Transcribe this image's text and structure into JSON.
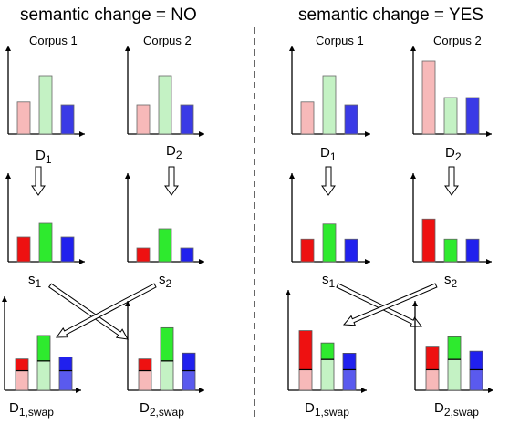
{
  "left": {
    "title": "semantic change = NO",
    "corpus1": "Corpus 1",
    "corpus2": "Corpus 2",
    "d1": {
      "main": "D",
      "sub": "1"
    },
    "d2": {
      "main": "D",
      "sub": "2"
    },
    "s1": {
      "main": "s",
      "sub": "1"
    },
    "s2": {
      "main": "s",
      "sub": "2"
    },
    "d1swap": {
      "main": "D",
      "sub": "1,swap"
    },
    "d2swap": {
      "main": "D",
      "sub": "2,swap"
    },
    "dist1": [
      0.55,
      1.0,
      0.5
    ],
    "dist2": [
      0.5,
      1.0,
      0.5
    ],
    "sample1": [
      0.45,
      0.7,
      0.45
    ],
    "sample2": [
      0.25,
      0.6,
      0.25
    ],
    "swap1": [
      [
        0.5,
        0.3
      ],
      [
        0.75,
        0.65
      ],
      [
        0.5,
        0.35
      ]
    ],
    "swap2": [
      [
        0.5,
        0.3
      ],
      [
        0.75,
        0.85
      ],
      [
        0.5,
        0.45
      ]
    ]
  },
  "right": {
    "title": "semantic change = YES",
    "corpus1": "Corpus 1",
    "corpus2": "Corpus 2",
    "d1": {
      "main": "D",
      "sub": "1"
    },
    "d2": {
      "main": "D",
      "sub": "2"
    },
    "s1": {
      "main": "s",
      "sub": "1"
    },
    "s2": {
      "main": "s",
      "sub": "2"
    },
    "d1swap": {
      "main": "D",
      "sub": "1,swap"
    },
    "d2swap": {
      "main": "D",
      "sub": "2,swap"
    },
    "dist1": [
      0.55,
      1.0,
      0.5
    ],
    "dist2": [
      1.0,
      0.5,
      0.5
    ],
    "sample1": [
      0.45,
      0.75,
      0.45
    ],
    "sample2": [
      0.85,
      0.45,
      0.45
    ],
    "swap1": [
      [
        0.5,
        0.95
      ],
      [
        0.75,
        0.4
      ],
      [
        0.5,
        0.4
      ]
    ],
    "swap2": [
      [
        0.5,
        0.55
      ],
      [
        0.75,
        0.55
      ],
      [
        0.5,
        0.45
      ]
    ]
  },
  "colors": {
    "light": [
      "#f7b9b9",
      "#c4f2c4",
      "#3a3ae6"
    ],
    "dark": [
      "#ee1111",
      "#2eea2e",
      "#2020ee"
    ],
    "light_top": [
      "#ff7070",
      "#66ee66",
      "#4646ee"
    ]
  }
}
